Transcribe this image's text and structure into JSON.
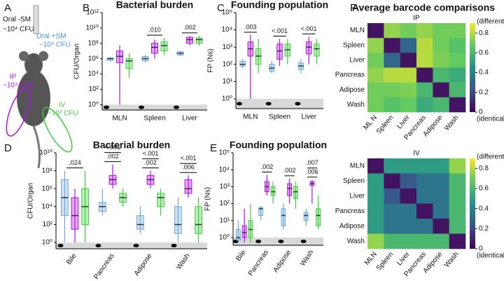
{
  "panel_a": {
    "label": "A",
    "oral_minus": "Oral -SM",
    "oral_minus_dose": "~10⁴ CFU",
    "oral_plus": "Oral +SM",
    "oral_plus_dose": "~10⁴ CFU",
    "ip": "IP",
    "ip_dose": "~10⁴ CFU",
    "iv": "IV",
    "iv_dose": "~10³ CFU"
  },
  "chart_data": [
    {
      "type": "box",
      "panel": "B",
      "title": "Bacterial burden",
      "ylabel": "CFU/Organ",
      "log": true,
      "categories": [
        "MLN",
        "Spleen",
        "Liver"
      ],
      "ylim": [
        0.2,
        1000000000000
      ],
      "yticks": [
        {
          "value": 1,
          "label": "10⁰"
        },
        {
          "value": 100,
          "label": "10²"
        },
        {
          "value": 10000,
          "label": "10⁴"
        },
        {
          "value": 1000000,
          "label": "10⁶"
        },
        {
          "value": 100000000,
          "label": "10⁸"
        },
        {
          "value": 10000000000,
          "label": "10¹⁰"
        },
        {
          "value": 1000000000000,
          "label": "10¹²"
        }
      ],
      "annotations": [
        [],
        [
          ".010"
        ],
        [
          ".002"
        ]
      ],
      "series": [
        {
          "color": "#6fa8dc",
          "min": [
            400000,
            300000,
            2000000
          ],
          "q1": [
            600000,
            500000,
            3000000
          ],
          "median": [
            1000000,
            1000000,
            5000000
          ],
          "q3": [
            1200000,
            2000000,
            8000000
          ],
          "max": [
            1500000,
            3000000,
            10000000
          ]
        },
        {
          "color": "#b010e8",
          "min": [
            1,
            1000000,
            50000000
          ],
          "q1": [
            300000,
            5000000,
            100000000
          ],
          "median": [
            2000000,
            30000000,
            300000000
          ],
          "q3": [
            10000000,
            100000000,
            600000000
          ],
          "max": [
            50000000,
            300000000,
            1000000000
          ]
        },
        {
          "color": "#3ccf3c",
          "min": [
            3000,
            3000000,
            50000000
          ],
          "q1": [
            50000,
            10000000,
            100000000
          ],
          "median": [
            500000,
            50000000,
            300000000
          ],
          "q3": [
            1000000,
            150000000,
            500000000
          ],
          "max": [
            5000000,
            500000000,
            1000000000
          ]
        }
      ]
    },
    {
      "type": "box",
      "panel": "C",
      "title": "Founding population",
      "ylabel": "FP (Ns)",
      "log": true,
      "categories": [
        "MLN",
        "Spleen",
        "Liver"
      ],
      "ylim": [
        0.27,
        100000
      ],
      "yticks": [
        {
          "value": 1,
          "label": "10⁰"
        },
        {
          "value": 10,
          "label": "10¹"
        },
        {
          "value": 100,
          "label": "10²"
        },
        {
          "value": 1000,
          "label": "10³"
        },
        {
          "value": 10000,
          "label": "10⁴"
        },
        {
          "value": 100000,
          "label": "10⁵"
        }
      ],
      "annotations": [
        [
          ".003"
        ],
        [
          "<.001"
        ],
        [
          "<.001"
        ]
      ],
      "series": [
        {
          "color": "#6fa8dc",
          "min": [
            60,
            30,
            30
          ],
          "q1": [
            80,
            40,
            50
          ],
          "median": [
            100,
            60,
            80
          ],
          "q3": [
            150,
            100,
            120
          ],
          "max": [
            200,
            150,
            200
          ]
        },
        {
          "color": "#b010e8",
          "min": [
            1,
            80,
            100
          ],
          "q1": [
            300,
            200,
            400
          ],
          "median": [
            800,
            600,
            1000
          ],
          "q3": [
            2000,
            1500,
            2000
          ],
          "max": [
            5000,
            3000,
            4000
          ]
        },
        {
          "color": "#3ccf3c",
          "min": [
            30,
            100,
            100
          ],
          "q1": [
            100,
            300,
            300
          ],
          "median": [
            300,
            700,
            800
          ],
          "q3": [
            800,
            1500,
            1500
          ],
          "max": [
            3000,
            3000,
            3000
          ]
        }
      ]
    },
    {
      "type": "box",
      "panel": "D",
      "title": "Bacterial burden",
      "ylabel": "CFU/Organ",
      "log": true,
      "categories": [
        "Bile",
        "Pancreas",
        "Adipose",
        "Wash"
      ],
      "ylim": [
        0.2,
        10000000000
      ],
      "yticks": [
        {
          "value": 1,
          "label": "10⁰"
        },
        {
          "value": 100,
          "label": "10²"
        },
        {
          "value": 10000,
          "label": "10⁴"
        },
        {
          "value": 1000000,
          "label": "10⁶"
        },
        {
          "value": 100000000,
          "label": "10⁸"
        },
        {
          "value": 10000000000,
          "label": "10¹⁰"
        }
      ],
      "annotations": [
        [
          ".024"
        ],
        [
          ".002",
          "<.001"
        ],
        [
          ".002",
          "<.001"
        ],
        [
          ".006",
          "<.001"
        ]
      ],
      "series": [
        {
          "color": "#6fa8dc",
          "min": [
            1,
            1000,
            10,
            1
          ],
          "q1": [
            1000,
            3000,
            30,
            10
          ],
          "median": [
            100000,
            10000,
            100,
            100
          ],
          "q3": [
            10000000,
            30000,
            1000,
            10000
          ],
          "max": [
            100000000,
            1000000,
            10000,
            100000
          ]
        },
        {
          "color": "#b010e8",
          "min": [
            1,
            1000000,
            1000000,
            100000
          ],
          "q1": [
            30,
            3000000,
            3000000,
            300000
          ],
          "median": [
            1000,
            10000000,
            10000000,
            1000000
          ],
          "q3": [
            100000,
            30000000,
            30000000,
            10000000
          ],
          "max": [
            1000000,
            500000000,
            100000000,
            30000000
          ]
        },
        {
          "color": "#3ccf3c",
          "min": [
            1,
            10000,
            1000,
            1
          ],
          "q1": [
            100,
            30000,
            10000,
            10
          ],
          "median": [
            10000,
            100000,
            100000,
            100
          ],
          "q3": [
            1000000,
            300000,
            300000,
            10000
          ],
          "max": [
            100000000,
            1000000,
            1000000,
            100000
          ]
        }
      ]
    },
    {
      "type": "box",
      "panel": "E",
      "title": "Founding population",
      "ylabel": "FP (Ns)",
      "log": true,
      "categories": [
        "Bile",
        "Pancreas",
        "Adipose",
        "Wash"
      ],
      "ylim": [
        0.35,
        100000
      ],
      "yticks": [
        {
          "value": 1,
          "label": "10⁰"
        },
        {
          "value": 10,
          "label": "10¹"
        },
        {
          "value": 100,
          "label": "10²"
        },
        {
          "value": 1000,
          "label": "10³"
        },
        {
          "value": 10000,
          "label": "10⁴"
        },
        {
          "value": 100000,
          "label": "10⁵"
        }
      ],
      "annotations": [
        [],
        [
          ".002"
        ],
        [
          ".002"
        ],
        [
          ".006",
          ".007"
        ]
      ],
      "series": [
        {
          "color": "#6fa8dc",
          "min": [
            0.5,
            10,
            3,
            5
          ],
          "q1": [
            0.7,
            20,
            5,
            10
          ],
          "median": [
            1,
            50,
            20,
            20
          ],
          "q3": [
            3,
            60,
            50,
            30
          ],
          "max": [
            10,
            70,
            100,
            50
          ]
        },
        {
          "color": "#b010e8",
          "min": [
            0.5,
            300,
            100,
            100
          ],
          "q1": [
            1,
            500,
            300,
            1200
          ],
          "median": [
            2,
            1000,
            800,
            1500
          ],
          "q3": [
            5,
            2000,
            1500,
            2000
          ],
          "max": [
            50,
            5000,
            3000,
            2500
          ]
        },
        {
          "color": "#3ccf3c",
          "min": [
            0.5,
            100,
            50,
            3
          ],
          "q1": [
            1,
            300,
            200,
            5
          ],
          "median": [
            3,
            500,
            500,
            20
          ],
          "q3": [
            10,
            1000,
            1000,
            50
          ],
          "max": [
            100,
            2000,
            2000,
            300
          ]
        }
      ]
    },
    {
      "type": "heatmap",
      "panel": "F",
      "title": "Average barcode comparisons",
      "subtitle": "IP",
      "colormap": "viridis",
      "rows": [
        "MLN",
        "Spleen",
        "Liver",
        "Pancreas",
        "Adipose",
        "Wash"
      ],
      "columns": [
        "ML N",
        "Spleen",
        "Liver",
        "Pancreas",
        "Adipose",
        "Wash"
      ],
      "matrix": [
        [
          0.05,
          0.75,
          0.7,
          0.75,
          0.7,
          0.7
        ],
        [
          0.75,
          0.05,
          0.3,
          0.8,
          0.7,
          0.65
        ],
        [
          0.7,
          0.3,
          0.05,
          0.8,
          0.72,
          0.68
        ],
        [
          0.75,
          0.8,
          0.8,
          0.05,
          0.6,
          0.55
        ],
        [
          0.7,
          0.7,
          0.72,
          0.6,
          0.05,
          0.6
        ],
        [
          0.7,
          0.65,
          0.68,
          0.55,
          0.6,
          0.05
        ]
      ],
      "zlim": [
        0,
        0.9
      ],
      "zticks": [
        0,
        0.2,
        0.4,
        0.6,
        0.8
      ],
      "zlabel_top": "(different)",
      "zlabel_bottom": "(identical)"
    },
    {
      "type": "heatmap",
      "subtitle": "IV",
      "colormap": "viridis",
      "rows": [
        "MLN",
        "Spleen",
        "Liver",
        "Pancreas",
        "Adipose",
        "Wash"
      ],
      "columns": [
        "MLN",
        "Spleen",
        "Liver",
        "Pancreas",
        "Adipose",
        "Wash"
      ],
      "matrix": [
        [
          0.05,
          0.5,
          0.5,
          0.5,
          0.5,
          0.75
        ],
        [
          0.5,
          0.05,
          0.25,
          0.35,
          0.35,
          0.6
        ],
        [
          0.5,
          0.25,
          0.05,
          0.35,
          0.35,
          0.6
        ],
        [
          0.5,
          0.35,
          0.35,
          0.05,
          0.35,
          0.6
        ],
        [
          0.5,
          0.35,
          0.35,
          0.35,
          0.05,
          0.6
        ],
        [
          0.75,
          0.6,
          0.6,
          0.6,
          0.6,
          0.05
        ]
      ],
      "zlim": [
        0,
        0.9
      ],
      "zticks": [
        0,
        0.2,
        0.4,
        0.6,
        0.8
      ],
      "zlabel_top": "(different)",
      "zlabel_bottom": "(identical)"
    }
  ]
}
